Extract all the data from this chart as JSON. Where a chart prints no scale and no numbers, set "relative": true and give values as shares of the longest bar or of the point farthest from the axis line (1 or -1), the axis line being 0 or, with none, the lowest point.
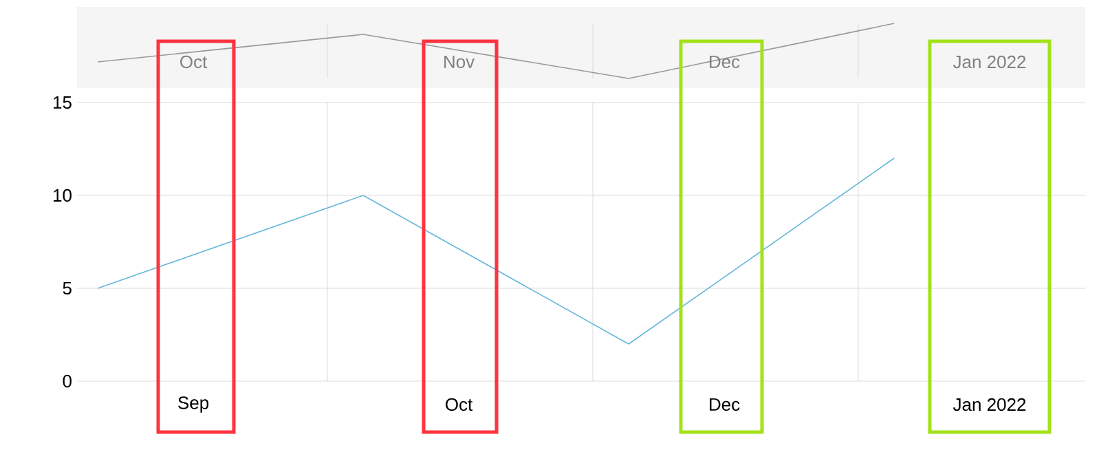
{
  "chart_data": [
    {
      "type": "line",
      "relative": true,
      "categories": [
        null,
        null,
        null,
        null
      ],
      "values": [
        0.3,
        0.8,
        0,
        1
      ],
      "color": "#999999",
      "annotations": [
        "Oct",
        "Nov",
        "Dec",
        "Jan 2022"
      ],
      "grid": "x"
    },
    {
      "type": "line",
      "categories": [
        null,
        null,
        null,
        null
      ],
      "values": [
        5,
        10,
        2,
        12
      ],
      "color": "#67b7dc",
      "ylim": [
        0,
        15
      ],
      "yticks": [
        0,
        5,
        10,
        15
      ],
      "annotations": [
        "Sep",
        "Oct",
        "Dec",
        "Jan 2022"
      ],
      "grid": true
    }
  ]
}
